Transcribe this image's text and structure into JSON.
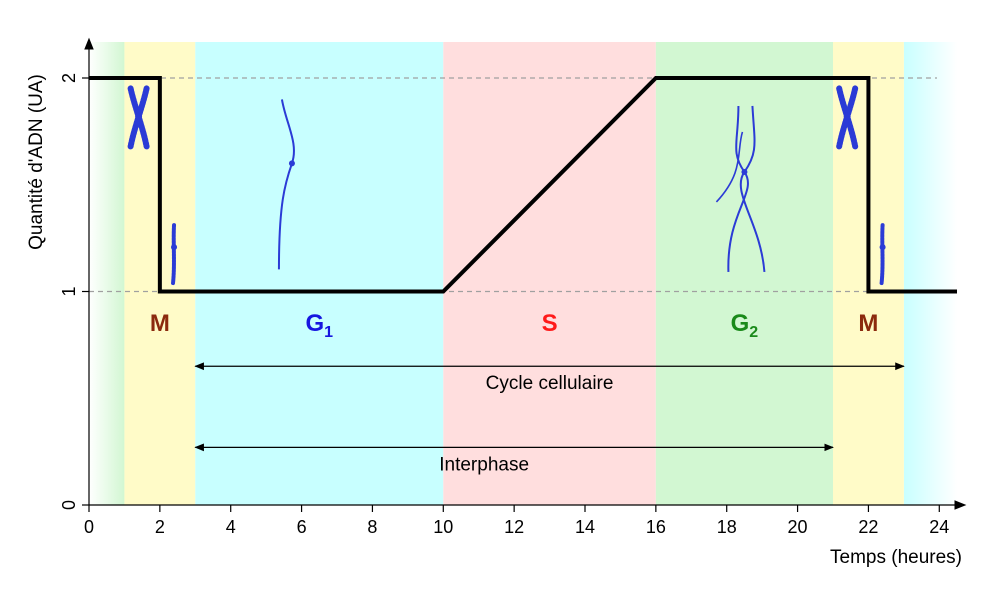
{
  "chart_data": {
    "type": "line",
    "xlabel": "Temps (heures)",
    "ylabel": "Quantité d'ADN (UA)",
    "xlim": [
      0,
      24.5
    ],
    "ylim": [
      0,
      2
    ],
    "x_ticks": [
      "0",
      "2",
      "4",
      "6",
      "8",
      "10",
      "12",
      "14",
      "16",
      "18",
      "20",
      "22",
      "24"
    ],
    "y_ticks": [
      "0",
      "1",
      "2"
    ],
    "gridlines": {
      "y_dashed": [
        1,
        2
      ]
    },
    "series": [
      {
        "x": [
          0,
          2,
          2,
          10,
          16,
          22,
          22,
          24.5
        ],
        "y": [
          2,
          2,
          1,
          1,
          2,
          2,
          1,
          1
        ]
      }
    ],
    "phases": [
      {
        "label": "M",
        "sub": "",
        "start": 1,
        "end": 3,
        "color": "#fffbc8",
        "label_color": "#8b2a0e"
      },
      {
        "label": "G",
        "sub": "1",
        "start": 3,
        "end": 10,
        "color": "#c8ffff",
        "label_color": "#1616e0"
      },
      {
        "label": "S",
        "sub": "",
        "start": 10,
        "end": 16,
        "color": "#ffdede",
        "label_color": "#ff1a1a"
      },
      {
        "label": "G",
        "sub": "2",
        "start": 16,
        "end": 21,
        "color": "#d2f7d2",
        "label_color": "#1a8a1a"
      },
      {
        "label": "M",
        "sub": "",
        "start": 21,
        "end": 23,
        "color": "#fffbc8",
        "label_color": "#8b2a0e"
      }
    ],
    "edge_gradients": [
      {
        "start": 0,
        "end": 1,
        "from": "#ffffff",
        "to": "#d2f7d2"
      },
      {
        "start": 23,
        "end": 24.5,
        "from": "#c8ffff",
        "to": "#ffffff"
      }
    ],
    "annotations": [
      {
        "text": "Cycle cellulaire",
        "x_start": 3,
        "x_end": 23,
        "y": 0.65
      },
      {
        "text": "Interphase",
        "x_start": 3,
        "x_end": 21,
        "y": 0.27
      }
    ],
    "chromosomes": [
      {
        "kind": "x",
        "x": 1.4,
        "y": 1.82
      },
      {
        "kind": "single",
        "x": 2.4,
        "y": 1.18
      },
      {
        "kind": "long",
        "x": 5.7,
        "y": 1.6
      },
      {
        "kind": "twisted",
        "x": 18.5,
        "y": 1.56
      },
      {
        "kind": "x",
        "x": 21.4,
        "y": 1.82
      },
      {
        "kind": "single",
        "x": 22.4,
        "y": 1.18
      }
    ],
    "colors": {
      "line": "#000000",
      "chromosome": "#2b3bd6",
      "grid": "#a0a0a0",
      "axis": "#000000"
    }
  }
}
